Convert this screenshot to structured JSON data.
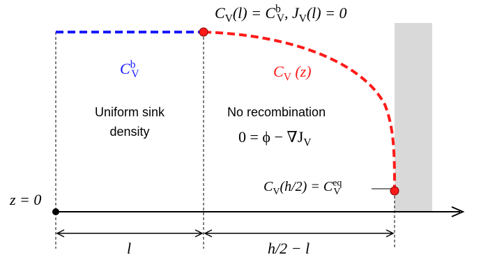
{
  "colors": {
    "bulk_line": "#1a1aff",
    "profile_line": "#ff1a1a",
    "surface_fill": "#d9d9d9",
    "axis": "#000000"
  },
  "labels": {
    "boundary_condition_top": {
      "c_sym": "C",
      "c_sub": "V",
      "c_arg": "(l) = C",
      "bulk_sub": "V",
      "bulk_sup": "b",
      "j_part": ", J",
      "j_sub": "V",
      "j_rest": "(l) = 0"
    },
    "bulk_concentration": {
      "sym": "C",
      "sub": "V",
      "sup": "b"
    },
    "profile_concentration": {
      "sym": "C",
      "sub": "V",
      "arg": " (z)"
    },
    "left_region": {
      "line1": "Uniform sink",
      "line2": "density"
    },
    "right_region": {
      "line1": "No recombination",
      "eq_lhs": "0 = ϕ − ∇J",
      "eq_sub": "V"
    },
    "boundary_condition_surface": {
      "sym": "C",
      "sub": "V",
      "arg": "(h/2) = C",
      "eq_sub": "V",
      "eq_sup": "eq"
    },
    "origin": "z = 0",
    "width_left": "l",
    "width_right": "h/2 − l"
  },
  "icons": {
    "axis_arrow": "arrow-right",
    "dimension_arrows": "double-headed-arrow"
  }
}
